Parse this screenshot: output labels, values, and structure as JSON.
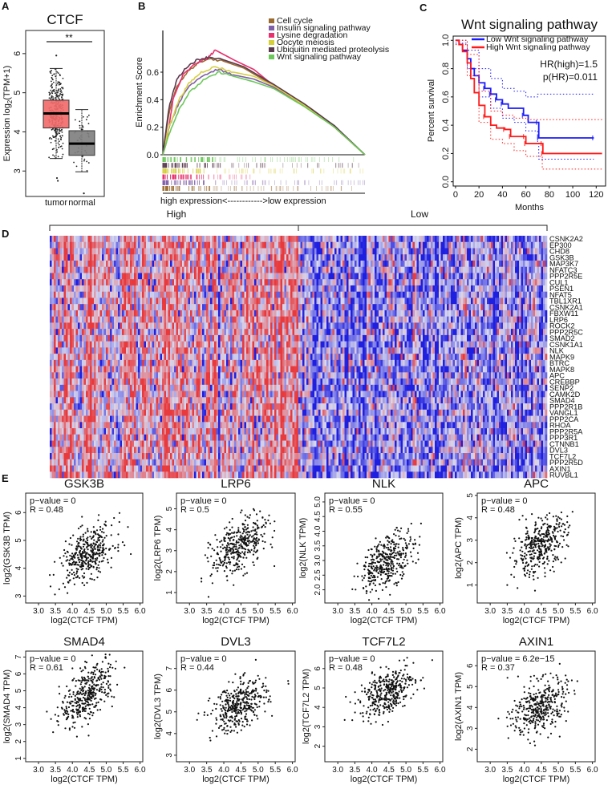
{
  "panels": {
    "A": "A",
    "B": "B",
    "C": "C",
    "D": "D",
    "E": "E"
  },
  "chart_data": [
    {
      "id": "A",
      "type": "box",
      "title": "CTCF",
      "ylabel": "Expression log2(TPM+1)",
      "ylabel_main": "Expression log",
      "ylabel_sub": "2",
      "ylabel_tail": "(TPM+1)",
      "yticks": [
        3,
        4,
        5,
        6
      ],
      "ylim": [
        2.35,
        6.55
      ],
      "significance": "**",
      "groups": [
        {
          "name": "tumor",
          "color": "#f26b6b",
          "q1": 4.1,
          "median": 4.47,
          "q3": 4.81,
          "whisker_low": 3.32,
          "whisker_high": 5.62,
          "outliers": [
            2.75,
            2.82,
            5.95
          ]
        },
        {
          "name": "normal",
          "color": "#808080",
          "q1": 3.4,
          "median": 3.7,
          "q3": 4.03,
          "whisker_low": 2.98,
          "whisker_high": 4.57,
          "outliers": [
            2.43
          ]
        }
      ]
    },
    {
      "id": "B",
      "type": "line",
      "ylabel": "Enrichment Score",
      "yticks": [
        "0.0",
        "0.2",
        "0.4",
        "0.6"
      ],
      "ylim": [
        0,
        0.78
      ],
      "xlabel": "high expression<------------>low expression",
      "series": [
        {
          "name": "Cell cycle",
          "color": "#9c6b30",
          "points": [
            [
              0,
              0
            ],
            [
              0.03,
              0.3
            ],
            [
              0.07,
              0.5
            ],
            [
              0.12,
              0.6
            ],
            [
              0.17,
              0.66
            ],
            [
              0.22,
              0.7
            ],
            [
              0.3,
              0.68
            ],
            [
              0.4,
              0.63
            ],
            [
              0.55,
              0.5
            ],
            [
              0.7,
              0.36
            ],
            [
              0.85,
              0.2
            ],
            [
              1,
              0.0
            ]
          ]
        },
        {
          "name": "Insulin signaling pathway",
          "color": "#7f5fa8",
          "points": [
            [
              0,
              0
            ],
            [
              0.03,
              0.2
            ],
            [
              0.08,
              0.38
            ],
            [
              0.13,
              0.5
            ],
            [
              0.19,
              0.57
            ],
            [
              0.27,
              0.62
            ],
            [
              0.35,
              0.58
            ],
            [
              0.45,
              0.55
            ],
            [
              0.55,
              0.49
            ],
            [
              0.7,
              0.36
            ],
            [
              0.85,
              0.2
            ],
            [
              1,
              0.0
            ]
          ]
        },
        {
          "name": "Lysine degradation",
          "color": "#e8306e",
          "points": [
            [
              0,
              0
            ],
            [
              0.02,
              0.1
            ],
            [
              0.05,
              0.4
            ],
            [
              0.1,
              0.58
            ],
            [
              0.16,
              0.66
            ],
            [
              0.22,
              0.7
            ],
            [
              0.26,
              0.76
            ],
            [
              0.35,
              0.69
            ],
            [
              0.45,
              0.62
            ],
            [
              0.55,
              0.5
            ],
            [
              0.7,
              0.36
            ],
            [
              0.85,
              0.2
            ],
            [
              1,
              0.0
            ]
          ]
        },
        {
          "name": "Oocyte meiosis",
          "color": "#d6cf3c",
          "points": [
            [
              0,
              0
            ],
            [
              0.03,
              0.2
            ],
            [
              0.08,
              0.4
            ],
            [
              0.13,
              0.52
            ],
            [
              0.19,
              0.6
            ],
            [
              0.26,
              0.64
            ],
            [
              0.35,
              0.6
            ],
            [
              0.45,
              0.57
            ],
            [
              0.55,
              0.5
            ],
            [
              0.7,
              0.36
            ],
            [
              0.85,
              0.2
            ],
            [
              1,
              0.0
            ]
          ]
        },
        {
          "name": "Ubiquitin mediated proteolysis",
          "color": "#5a3a4e",
          "points": [
            [
              0,
              0
            ],
            [
              0.03,
              0.34
            ],
            [
              0.07,
              0.55
            ],
            [
              0.12,
              0.64
            ],
            [
              0.17,
              0.69
            ],
            [
              0.23,
              0.71
            ],
            [
              0.3,
              0.69
            ],
            [
              0.4,
              0.64
            ],
            [
              0.55,
              0.51
            ],
            [
              0.7,
              0.37
            ],
            [
              0.85,
              0.21
            ],
            [
              1,
              0.0
            ]
          ]
        },
        {
          "name": "Wnt signaling pathway",
          "color": "#6cc85a",
          "points": [
            [
              0,
              0
            ],
            [
              0.03,
              0.15
            ],
            [
              0.08,
              0.33
            ],
            [
              0.13,
              0.45
            ],
            [
              0.2,
              0.54
            ],
            [
              0.28,
              0.6
            ],
            [
              0.35,
              0.57
            ],
            [
              0.45,
              0.53
            ],
            [
              0.55,
              0.48
            ],
            [
              0.7,
              0.35
            ],
            [
              0.85,
              0.2
            ],
            [
              1,
              0.0
            ]
          ]
        }
      ]
    },
    {
      "id": "C",
      "type": "line",
      "title": "Wnt signaling pathway",
      "xlabel": "Months",
      "ylabel": "Percent survival",
      "xticks": [
        0,
        20,
        40,
        60,
        80,
        100,
        120
      ],
      "yticks": [
        "0.0",
        "0.2",
        "0.4",
        "0.6",
        "0.8",
        "1.0"
      ],
      "xlim": [
        -2,
        128
      ],
      "ylim": [
        -0.03,
        1.03
      ],
      "hr_text": "HR(high)=1.5",
      "p_text": "p(HR)=0.011",
      "p_color": "#ff2020",
      "series": [
        {
          "name": "Low Wnt signaling pathway",
          "color": "#1a1aff",
          "points": [
            [
              0,
              1
            ],
            [
              3,
              0.97
            ],
            [
              6,
              0.93
            ],
            [
              10,
              0.87
            ],
            [
              13,
              0.8
            ],
            [
              16,
              0.75
            ],
            [
              20,
              0.7
            ],
            [
              25,
              0.66
            ],
            [
              30,
              0.62
            ],
            [
              35,
              0.58
            ],
            [
              40,
              0.55
            ],
            [
              45,
              0.52
            ],
            [
              57,
              0.52
            ],
            [
              58,
              0.47
            ],
            [
              62,
              0.42
            ],
            [
              70,
              0.42
            ],
            [
              71,
              0.31
            ],
            [
              118,
              0.31
            ]
          ],
          "ci_upper": [
            [
              0,
              1
            ],
            [
              10,
              0.93
            ],
            [
              20,
              0.8
            ],
            [
              30,
              0.73
            ],
            [
              40,
              0.66
            ],
            [
              50,
              0.64
            ],
            [
              60,
              0.6
            ],
            [
              70,
              0.62
            ],
            [
              118,
              0.62
            ]
          ],
          "ci_lower": [
            [
              0,
              0.98
            ],
            [
              10,
              0.8
            ],
            [
              20,
              0.6
            ],
            [
              30,
              0.52
            ],
            [
              40,
              0.45
            ],
            [
              50,
              0.42
            ],
            [
              60,
              0.36
            ],
            [
              70,
              0.28
            ],
            [
              71,
              0.16
            ],
            [
              118,
              0.16
            ]
          ]
        },
        {
          "name": "High Wnt signaling pathway",
          "color": "#ff1a1a",
          "points": [
            [
              0,
              1
            ],
            [
              3,
              0.97
            ],
            [
              6,
              0.92
            ],
            [
              10,
              0.84
            ],
            [
              13,
              0.73
            ],
            [
              16,
              0.63
            ],
            [
              20,
              0.54
            ],
            [
              25,
              0.46
            ],
            [
              30,
              0.4
            ],
            [
              35,
              0.38
            ],
            [
              42,
              0.37
            ],
            [
              47,
              0.32
            ],
            [
              59,
              0.32
            ],
            [
              60,
              0.27
            ],
            [
              74,
              0.27
            ],
            [
              74.5,
              0.2
            ],
            [
              125,
              0.2
            ]
          ],
          "ci_upper": [
            [
              0,
              1
            ],
            [
              10,
              0.9
            ],
            [
              20,
              0.64
            ],
            [
              30,
              0.5
            ],
            [
              40,
              0.47
            ],
            [
              50,
              0.45
            ],
            [
              60,
              0.44
            ],
            [
              125,
              0.44
            ]
          ],
          "ci_lower": [
            [
              0,
              0.97
            ],
            [
              10,
              0.75
            ],
            [
              20,
              0.42
            ],
            [
              30,
              0.3
            ],
            [
              40,
              0.27
            ],
            [
              50,
              0.22
            ],
            [
              60,
              0.18
            ],
            [
              74,
              0.09
            ],
            [
              125,
              0.09
            ]
          ]
        }
      ]
    },
    {
      "id": "D",
      "type": "heatmap",
      "group_labels": [
        "High",
        "Low"
      ],
      "rows": [
        "CSNK2A2",
        "EP300",
        "CHD8",
        "GSK3B",
        "MAP3K7",
        "NFATC3",
        "PPP2R5E",
        "CUL1",
        "PSEN1",
        "NFAT5",
        "TBL1XR1",
        "CSNK2A1",
        "FBXW11",
        "LRP6",
        "ROCK2",
        "PPP2R5C",
        "SMAD2",
        "CSNK1A1",
        "NLK",
        "MAPK9",
        "BTRC",
        "MAPK8",
        "APC",
        "CREBBP",
        "SENP2",
        "CAMK2D",
        "SMAD4",
        "PPP2R1B",
        "VANGL1",
        "PPP2CA",
        "RHOA",
        "PPP2R5A",
        "PPP3R1",
        "CTNNB1",
        "DVL3",
        "TCF7L2",
        "PPP2R5D",
        "AXIN1",
        "RUVBL1"
      ],
      "high_color": "#e8393c",
      "low_color": "#1f1fe0",
      "mid_color": "#d8d8ee"
    },
    {
      "id": "E",
      "type": "scatter",
      "xlabel": "log2(CTCF TPM)",
      "xticks": [
        "3.0",
        "3.5",
        "4.0",
        "4.5",
        "5.0",
        "5.5",
        "6.0"
      ],
      "xlim": [
        2.62,
        6.08
      ],
      "plots": [
        {
          "title": "GSK3B",
          "ylabel": "log2(GSK3B TPM)",
          "p_text": "p−value = 0",
          "r_text": "R = 0.48",
          "R": 0.48,
          "yticks": [
            "3",
            "4",
            "5",
            "6"
          ],
          "ylim": [
            2.75,
            6.7
          ],
          "y_mean": 4.5,
          "y_sd": 0.5
        },
        {
          "title": "LRP6",
          "ylabel": "log2(LRP6 TPM)",
          "p_text": "p−value = 0",
          "r_text": "R = 0.5",
          "R": 0.5,
          "yticks": [
            "1",
            "2",
            "3",
            "4",
            "5"
          ],
          "ylim": [
            0.5,
            5.75
          ],
          "y_mean": 3.2,
          "y_sd": 0.7
        },
        {
          "title": "NLK",
          "ylabel": "log2(NLK TPM)",
          "p_text": "p−value = 0",
          "r_text": "R = 0.55",
          "R": 0.55,
          "yticks": [
            "2.0",
            "2.5",
            "3.0",
            "3.5",
            "4.0",
            "4.5",
            "5.0"
          ],
          "ylim": [
            1.55,
            5.3
          ],
          "y_mean": 3.0,
          "y_sd": 0.5
        },
        {
          "title": "APC",
          "ylabel": "log2(APC TPM)",
          "p_text": "p−value = 0",
          "r_text": "R = 0.48",
          "R": 0.48,
          "yticks": [
            "1",
            "2",
            "3",
            "4",
            "5"
          ],
          "ylim": [
            0.2,
            5.1
          ],
          "y_mean": 2.75,
          "y_sd": 0.65
        },
        {
          "title": "SMAD4",
          "ylabel": "log2(SMAD4 TPM)",
          "p_text": "p−value = 0",
          "r_text": "R = 0.61",
          "R": 0.61,
          "yticks": [
            "1",
            "2",
            "3",
            "4",
            "5",
            "6",
            "7"
          ],
          "ylim": [
            0.8,
            7.35
          ],
          "y_mean": 4.85,
          "y_sd": 0.95
        },
        {
          "title": "DVL3",
          "ylabel": "log2(DVL3 TPM)",
          "p_text": "p−value = 0",
          "r_text": "R = 0.44",
          "R": 0.44,
          "yticks": [
            "3",
            "4",
            "5",
            "6",
            "7"
          ],
          "ylim": [
            2.7,
            7.8
          ],
          "y_mean": 5.3,
          "y_sd": 0.6
        },
        {
          "title": "TCF7L2",
          "ylabel": "log2(TCF7L2 TPM)",
          "p_text": "p−value = 0",
          "r_text": "R = 0.48",
          "R": 0.48,
          "yticks": [
            "2",
            "3",
            "4",
            "5",
            "6"
          ],
          "ylim": [
            1.2,
            6.9
          ],
          "y_mean": 4.8,
          "y_sd": 0.62
        },
        {
          "title": "AXIN1",
          "ylabel": "log2(AXIN1 TPM)",
          "p_text": "p−value = 6.2e−15",
          "r_text": "R = 0.37",
          "R": 0.37,
          "yticks": [
            "2",
            "3",
            "4",
            "5",
            "6"
          ],
          "ylim": [
            1.4,
            6.7
          ],
          "y_mean": 4.0,
          "y_sd": 0.68
        }
      ]
    }
  ]
}
